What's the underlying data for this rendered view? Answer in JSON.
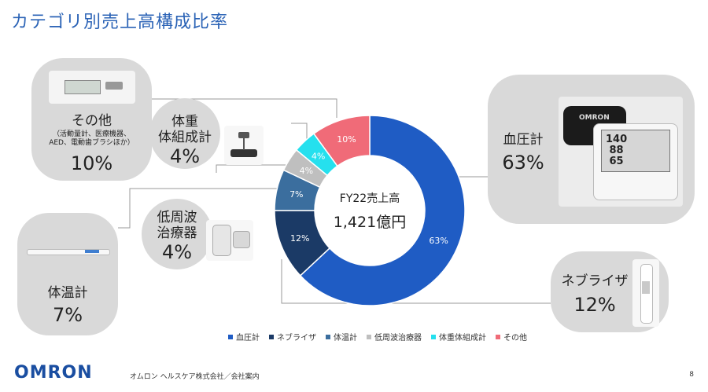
{
  "title": "カテゴリ別売上高構成比率",
  "center": {
    "line1": "FY22売上高",
    "line2": "1,421億円"
  },
  "cards": {
    "other": {
      "label": "その他",
      "sub1": "（活動量計、医療機器、",
      "sub2": "AED、電動歯ブラシほか）",
      "pct": "10%"
    },
    "bodycomp": {
      "label1": "体重",
      "label2": "体組成計",
      "pct": "4%"
    },
    "tens": {
      "label1": "低周波",
      "label2": "治療器",
      "pct": "4%"
    },
    "thermo": {
      "label": "体温計",
      "pct": "7%"
    },
    "bp": {
      "label": "血圧計",
      "pct": "63%"
    },
    "nebul": {
      "label": "ネブライザ",
      "pct": "12%"
    }
  },
  "chart_data": {
    "type": "pie",
    "title": "FY22売上高",
    "total_label": "1,421億円",
    "categories": [
      "血圧計",
      "ネブライザ",
      "体温計",
      "低周波治療器",
      "体重体組成計",
      "その他"
    ],
    "values": [
      63,
      12,
      7,
      4,
      4,
      10
    ],
    "data_labels": [
      "63%",
      "12%",
      "7%",
      "4%",
      "4%",
      "10%"
    ],
    "colors": [
      "#1f5cc4",
      "#1b3a66",
      "#3b6e9e",
      "#bfbfbf",
      "#25e0ee",
      "#f06b78"
    ],
    "legend_position": "bottom"
  },
  "footer": {
    "logo": "OMRON",
    "text": "オムロン ヘルスケア株式会社／会社案内",
    "page": "8"
  }
}
